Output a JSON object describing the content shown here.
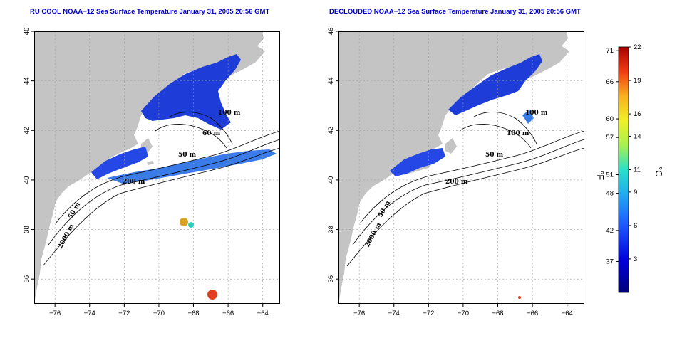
{
  "panels": [
    {
      "title": "RU COOL NOAA−12 Sea Surface Temperature January 31, 2005 20:56 GMT",
      "contour_labels": [
        "100 m",
        "60 m",
        "50 m",
        "200 m",
        "50 m",
        "2000 m"
      ]
    },
    {
      "title": "DECLOUDED NOAA−12 Sea Surface Temperature January 31, 2005 20:56 GMT",
      "contour_labels": [
        "100 m",
        "100 m",
        "50 m",
        "200 m",
        "50 m",
        "2000 m"
      ]
    }
  ],
  "axes": {
    "lon_ticks": [
      "−76",
      "−74",
      "−72",
      "−70",
      "−68",
      "−66",
      "−64"
    ],
    "lat_ticks": [
      "36",
      "38",
      "40",
      "42",
      "44",
      "46"
    ],
    "lon_range": [
      -77.2,
      -63.0
    ],
    "lat_range": [
      35.0,
      46.0
    ]
  },
  "colorbar": {
    "fahrenheit_unit": "°F",
    "celsius_unit": "°C",
    "fahrenheit_ticks": [
      "71",
      "66",
      "60",
      "57",
      "51",
      "48",
      "42",
      "37"
    ],
    "celsius_ticks": [
      "22",
      "19",
      "16",
      "14",
      "11",
      "9",
      "6",
      "3"
    ],
    "fahrenheit_values": [
      71,
      66,
      60,
      57,
      51,
      48,
      42,
      37
    ],
    "celsius_values": [
      22,
      19,
      16,
      14,
      11,
      9,
      6,
      3
    ],
    "range_c": [
      0,
      22
    ]
  },
  "colors": {
    "land": "#c4c4c4",
    "ocean": "#ffffff",
    "title": "#0000c8",
    "grid": "#9a9a9a",
    "contour": "#000000"
  }
}
